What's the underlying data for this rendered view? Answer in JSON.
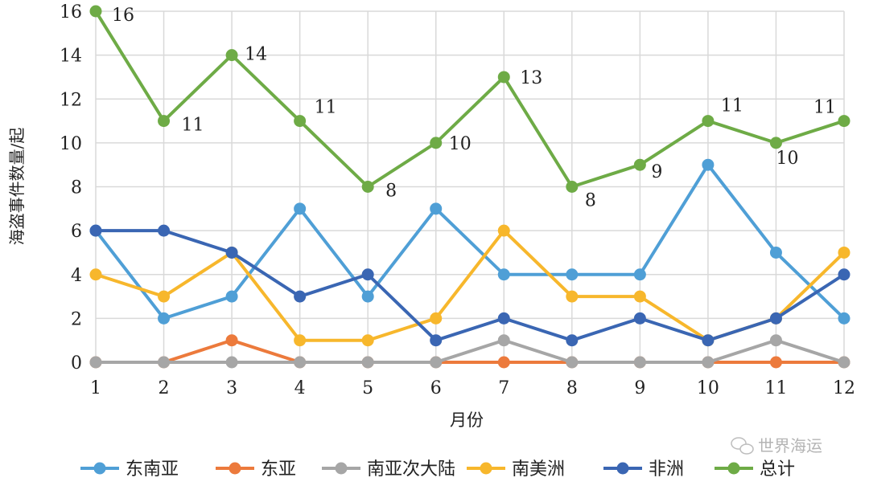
{
  "chart_data": {
    "type": "line",
    "title": "",
    "xlabel": "月份",
    "ylabel": "海盗事件数量/起",
    "x": [
      1,
      2,
      3,
      4,
      5,
      6,
      7,
      8,
      9,
      10,
      11,
      12
    ],
    "xticks": [
      "1",
      "2",
      "3",
      "4",
      "5",
      "6",
      "7",
      "8",
      "9",
      "10",
      "11",
      "12"
    ],
    "ylim": [
      0,
      16
    ],
    "yticks": [
      "0",
      "2",
      "4",
      "6",
      "8",
      "10",
      "12",
      "14",
      "16"
    ],
    "grid": true,
    "legend_position": "bottom",
    "series": [
      {
        "name": "东南亚",
        "color": "#4f9fd6",
        "values": [
          6,
          2,
          3,
          7,
          3,
          7,
          4,
          4,
          4,
          9,
          5,
          2
        ]
      },
      {
        "name": "东亚",
        "color": "#ec7a3c",
        "values": [
          0,
          0,
          1,
          0,
          0,
          0,
          0,
          0,
          0,
          0,
          0,
          0
        ]
      },
      {
        "name": "南亚次大陆",
        "color": "#a6a6a6",
        "values": [
          0,
          0,
          0,
          0,
          0,
          0,
          1,
          0,
          0,
          0,
          1,
          0
        ]
      },
      {
        "name": "南美洲",
        "color": "#f7b72c",
        "values": [
          4,
          3,
          5,
          1,
          1,
          2,
          6,
          3,
          3,
          1,
          2,
          5
        ]
      },
      {
        "name": "非洲",
        "color": "#3a66b3",
        "values": [
          6,
          6,
          5,
          3,
          4,
          1,
          2,
          1,
          2,
          1,
          2,
          4
        ]
      },
      {
        "name": "总计",
        "color": "#6eab46",
        "values": [
          16,
          11,
          14,
          11,
          8,
          10,
          13,
          8,
          9,
          11,
          10,
          11
        ],
        "data_labels": [
          "16",
          "11",
          "14",
          "11",
          "8",
          "10",
          "13",
          "8",
          "9",
          "11",
          "10",
          "11"
        ]
      }
    ]
  },
  "watermark": "世界海运"
}
